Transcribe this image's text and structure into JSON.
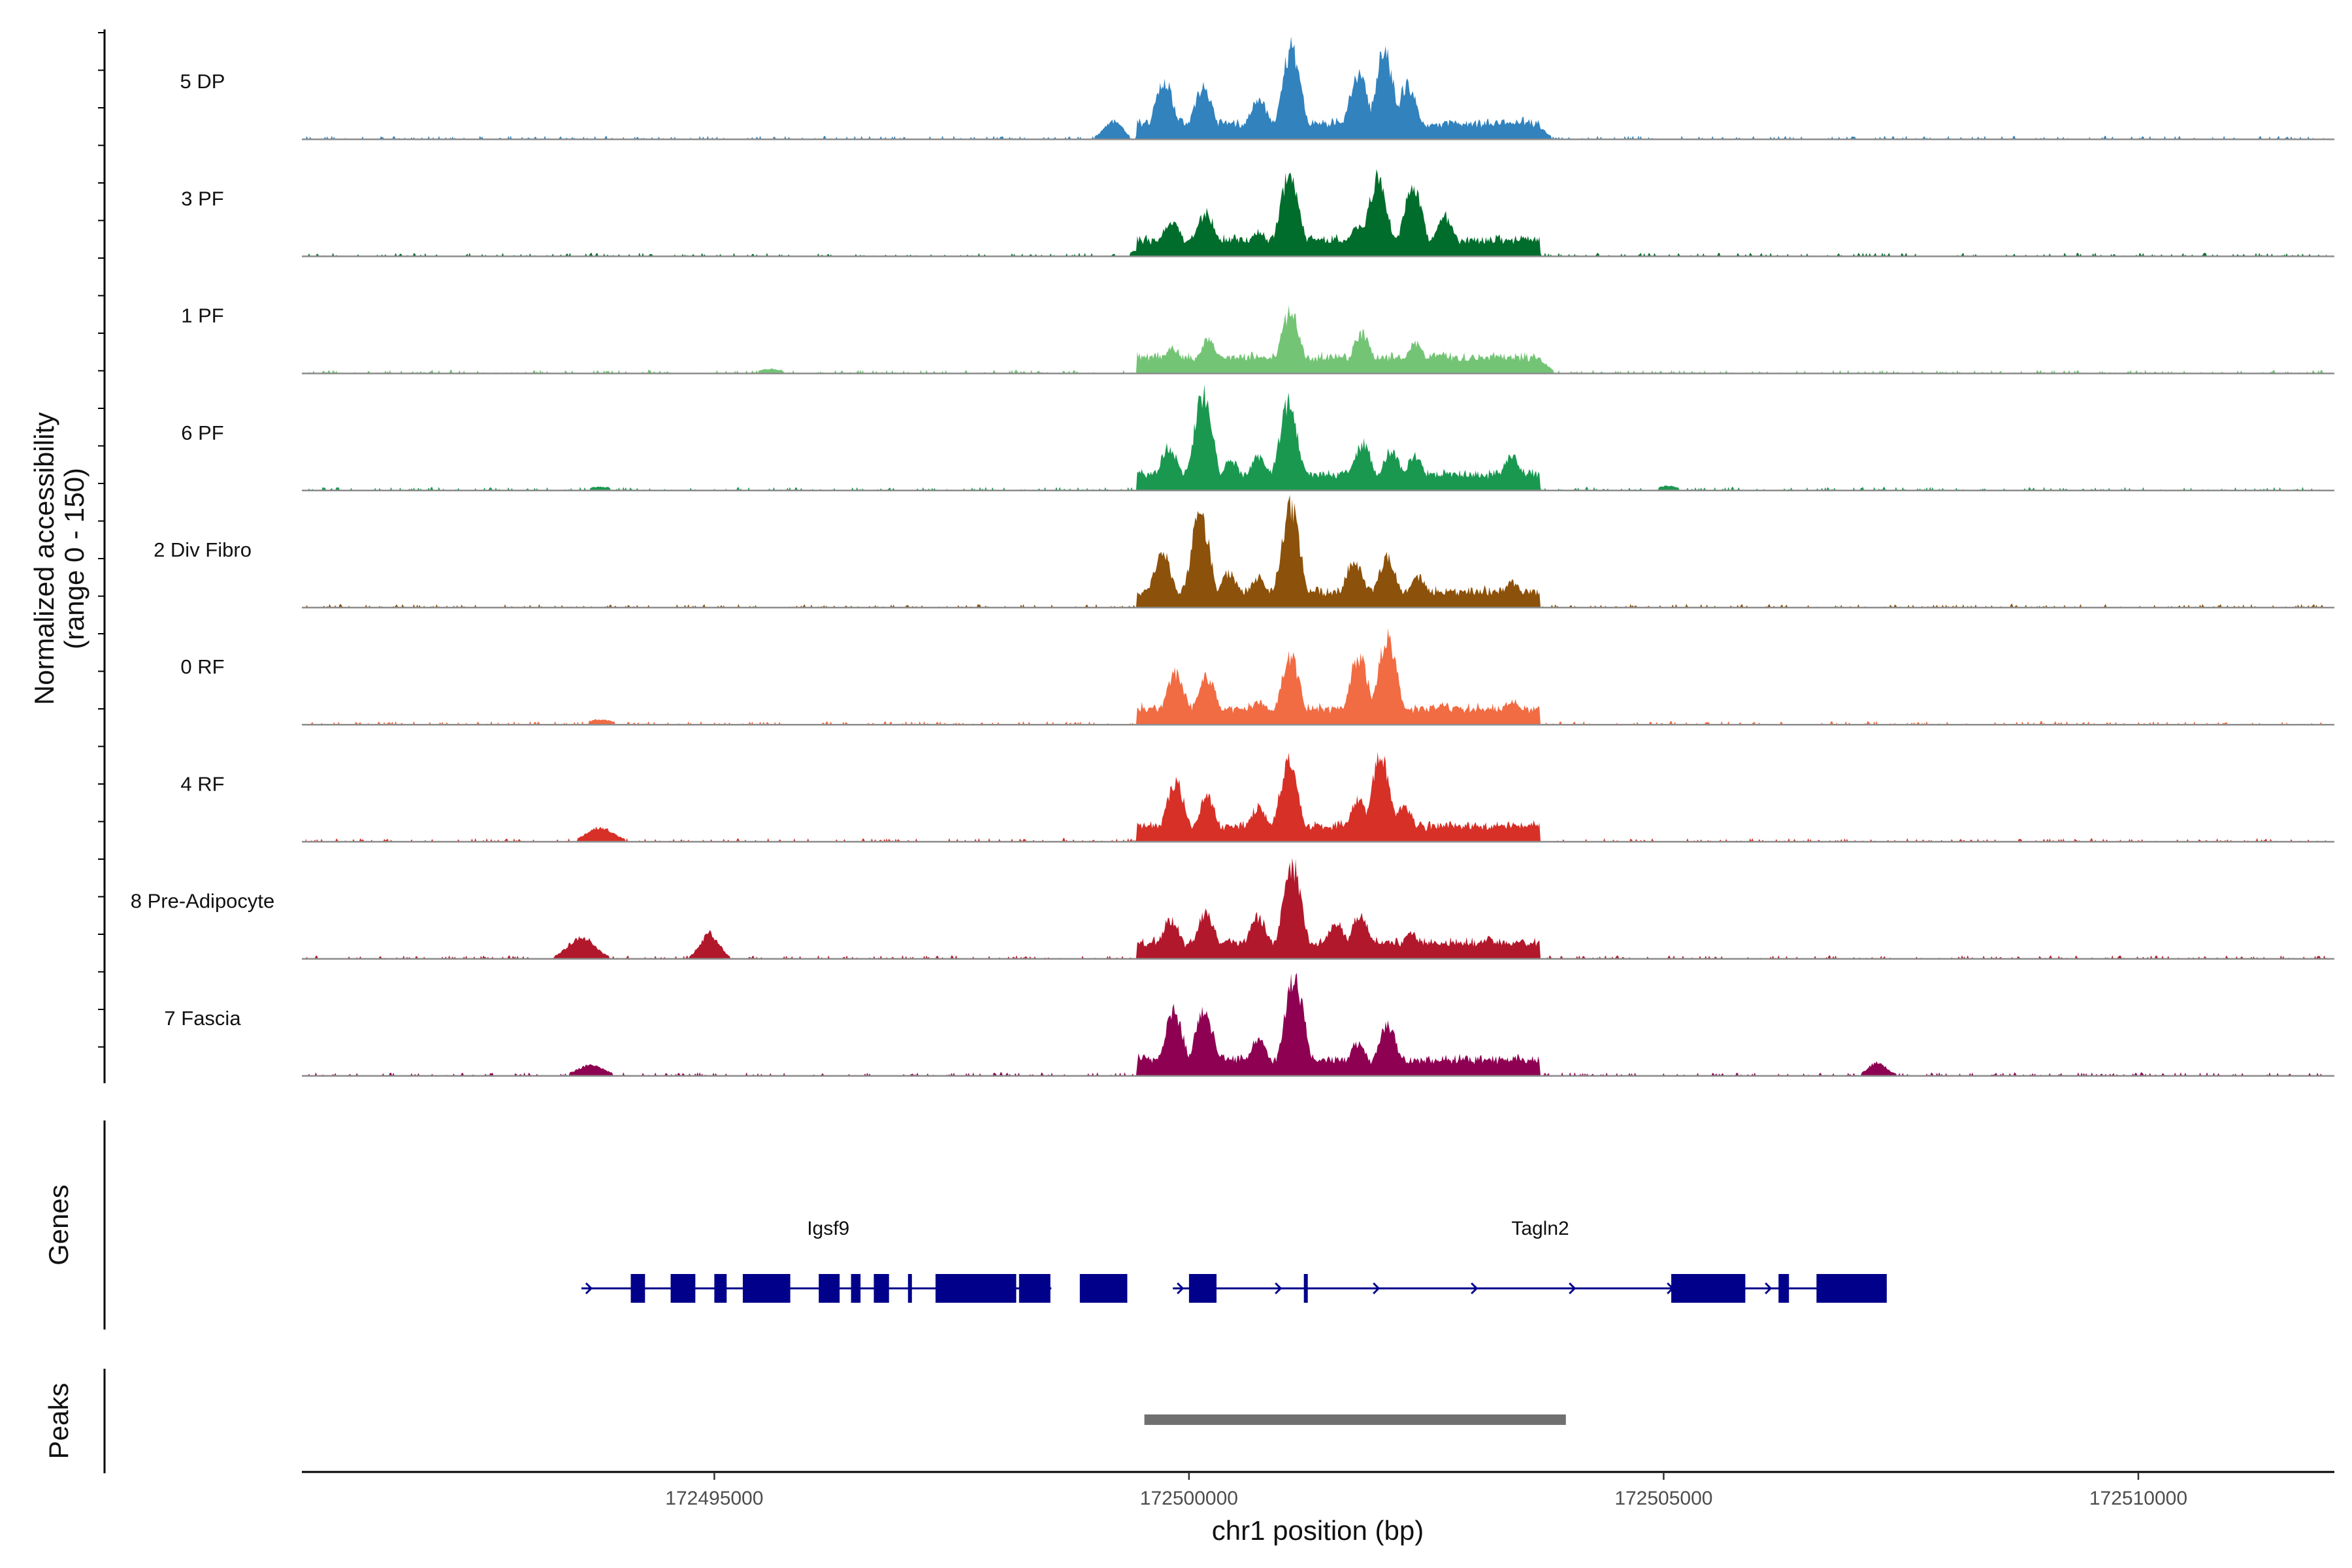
{
  "chart_data": {
    "type": "coverage",
    "title": "",
    "xlabel": "chr1 position (bp)",
    "ylabel_line1": "Normalized accessibility",
    "ylabel_line2": "(range 0 - 150)",
    "ylim": [
      0,
      150
    ],
    "xlim": [
      172490655,
      172512065
    ],
    "xticks": [
      172495000,
      172500000,
      172505000,
      172510000
    ],
    "tracks": [
      {
        "name": "5 DP",
        "color": "#3182BD",
        "profile": [
          [
            172499200,
            25
          ],
          [
            172499740,
            80
          ],
          [
            172500150,
            72
          ],
          [
            172500730,
            55
          ],
          [
            172501080,
            125
          ],
          [
            172501790,
            92
          ],
          [
            172502060,
            120
          ],
          [
            172502300,
            75
          ],
          [
            172503650,
            18
          ]
        ]
      },
      {
        "name": "3 PF",
        "color": "#006D2C",
        "profile": [
          [
            172499500,
            10
          ],
          [
            172499820,
            50
          ],
          [
            172500180,
            60
          ],
          [
            172500730,
            35
          ],
          [
            172501060,
            115
          ],
          [
            172501780,
            40
          ],
          [
            172501990,
            108
          ],
          [
            172502360,
            95
          ],
          [
            172502700,
            55
          ],
          [
            172503530,
            25
          ]
        ]
      },
      {
        "name": "1 PF",
        "color": "#74C476",
        "profile": [
          [
            172495600,
            6
          ],
          [
            172499600,
            8
          ],
          [
            172499830,
            35
          ],
          [
            172500200,
            45
          ],
          [
            172500730,
            22
          ],
          [
            172501070,
            85
          ],
          [
            172501820,
            55
          ],
          [
            172502390,
            42
          ],
          [
            172502670,
            28
          ],
          [
            172503660,
            22
          ]
        ]
      },
      {
        "name": "6 PF",
        "color": "#1A9850",
        "profile": [
          [
            172493800,
            5
          ],
          [
            172499790,
            60
          ],
          [
            172500150,
            130
          ],
          [
            172500440,
            42
          ],
          [
            172500730,
            48
          ],
          [
            172501050,
            120
          ],
          [
            172501830,
            65
          ],
          [
            172502130,
            55
          ],
          [
            172502380,
            48
          ],
          [
            172503400,
            48
          ],
          [
            172505050,
            7
          ]
        ]
      },
      {
        "name": "2 Div Fibro",
        "color": "#8C510A",
        "profile": [
          [
            172499720,
            75
          ],
          [
            172500120,
            128
          ],
          [
            172500420,
            48
          ],
          [
            172500730,
            42
          ],
          [
            172501070,
            138
          ],
          [
            172501740,
            65
          ],
          [
            172502090,
            68
          ],
          [
            172502420,
            42
          ],
          [
            172503400,
            35
          ]
        ]
      },
      {
        "name": "0 RF",
        "color": "#F16B43",
        "profile": [
          [
            172493800,
            7
          ],
          [
            172499860,
            70
          ],
          [
            172500190,
            65
          ],
          [
            172500730,
            32
          ],
          [
            172501070,
            92
          ],
          [
            172501790,
            95
          ],
          [
            172502090,
            122
          ],
          [
            172502670,
            28
          ],
          [
            172503410,
            35
          ]
        ]
      },
      {
        "name": "4 RF",
        "color": "#D73027",
        "profile": [
          [
            172493800,
            20
          ],
          [
            172499860,
            82
          ],
          [
            172500190,
            60
          ],
          [
            172500730,
            48
          ],
          [
            172501050,
            108
          ],
          [
            172501790,
            58
          ],
          [
            172502020,
            115
          ],
          [
            172502270,
            50
          ],
          [
            172503420,
            22
          ]
        ]
      },
      {
        "name": "8 Pre-Adipocyte",
        "color": "#B2182B",
        "profile": [
          [
            172493600,
            30
          ],
          [
            172494950,
            35
          ],
          [
            172499810,
            55
          ],
          [
            172500180,
            62
          ],
          [
            172500730,
            58
          ],
          [
            172501090,
            128
          ],
          [
            172501550,
            50
          ],
          [
            172501800,
            60
          ],
          [
            172502340,
            35
          ],
          [
            172503150,
            28
          ],
          [
            172503470,
            25
          ]
        ]
      },
      {
        "name": "7 Fascia",
        "color": "#8E0152",
        "profile": [
          [
            172493700,
            15
          ],
          [
            172499840,
            90
          ],
          [
            172500160,
            90
          ],
          [
            172500730,
            50
          ],
          [
            172501110,
            138
          ],
          [
            172501780,
            45
          ],
          [
            172502090,
            72
          ],
          [
            172503450,
            22
          ],
          [
            172507250,
            18
          ]
        ]
      }
    ],
    "genes": [
      {
        "name": "Igsf9",
        "strand": "+",
        "start": 172493600,
        "end": 172498550,
        "exons": [
          [
            172494120,
            172494270
          ],
          [
            172494540,
            172494800
          ],
          [
            172495000,
            172495130
          ],
          [
            172495300,
            172495800
          ],
          [
            172496100,
            172496320
          ],
          [
            172496440,
            172496540
          ],
          [
            172496680,
            172496840
          ],
          [
            172497040,
            172497070
          ],
          [
            172497330,
            172498180
          ],
          [
            172498210,
            172498540
          ],
          [
            172498850,
            172499350
          ]
        ]
      },
      {
        "name": "Tagln2",
        "strand": "+",
        "start": 172499830,
        "end": 172507350,
        "exons": [
          [
            172500000,
            172500290
          ],
          [
            172501210,
            172501250
          ],
          [
            172505080,
            172505860
          ],
          [
            172506210,
            172506320
          ],
          [
            172506610,
            172507350
          ]
        ]
      }
    ],
    "peaks": [
      [
        172499530,
        172503970
      ]
    ]
  }
}
